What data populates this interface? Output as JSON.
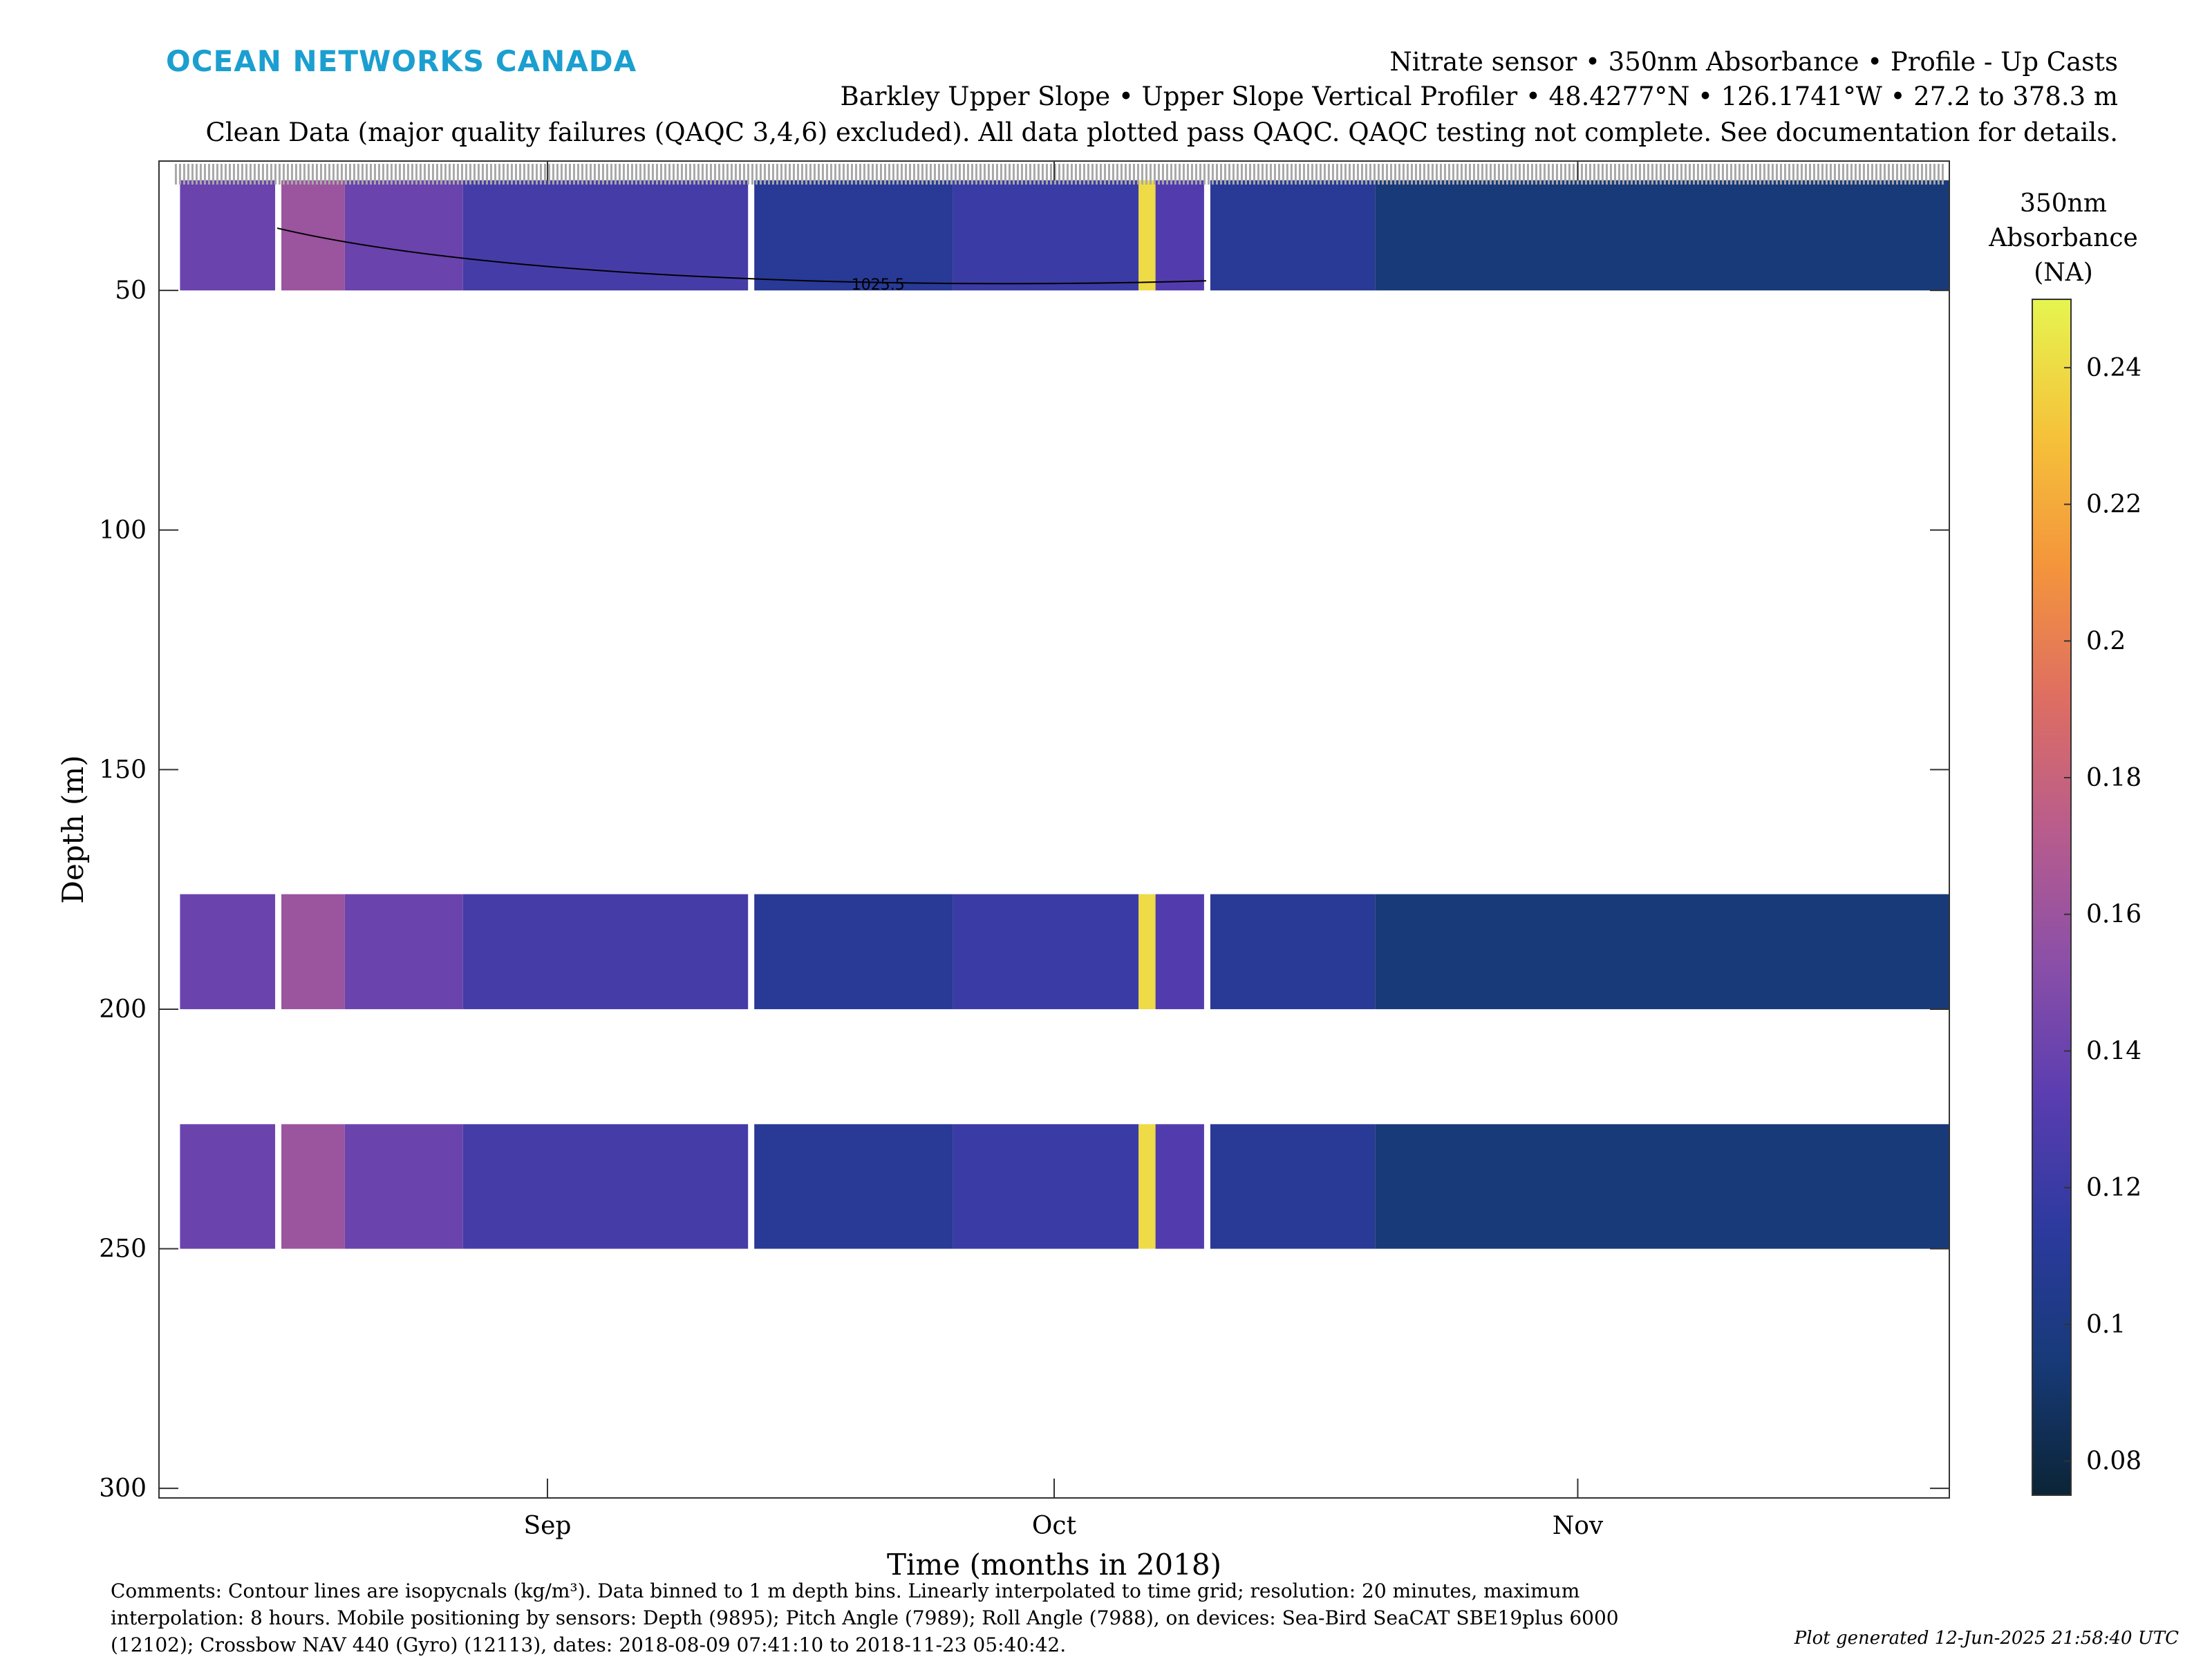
{
  "header": {
    "logo_text": "OCEAN NETWORKS CANADA",
    "line1": "Nitrate sensor • 350nm Absorbance • Profile - Up Casts",
    "line2": "Barkley Upper Slope • Upper Slope Vertical Profiler • 48.4277°N • 126.1741°W • 27.2 to 378.3 m",
    "line3": "Clean Data (major quality failures (QAQC 3,4,6) excluded). All data plotted pass QAQC. QAQC testing not complete. See documentation for details."
  },
  "colorbar": {
    "title_line1": "350nm",
    "title_line2": "Absorbance",
    "title_line3": "(NA)",
    "range": [
      0.075,
      0.25
    ],
    "ticks": [
      "0.08",
      "0.1",
      "0.12",
      "0.14",
      "0.16",
      "0.18",
      "0.2",
      "0.22",
      "0.24"
    ],
    "colors": [
      "#0b2436",
      "#173a78",
      "#2c3a9e",
      "#5a3db0",
      "#8a4fa8",
      "#b85c8d",
      "#de6e62",
      "#f4953c",
      "#f5c33a",
      "#e6f550"
    ]
  },
  "chart_data": {
    "type": "heatmap",
    "xlabel": "Time (months in 2018)",
    "ylabel": "Depth (m)",
    "x_range": [
      "2018-08-09",
      "2018-11-23"
    ],
    "ylim": [
      302,
      23
    ],
    "y_reversed": true,
    "x_ticks": [
      {
        "label": "Sep",
        "date": "2018-09-01"
      },
      {
        "label": "Oct",
        "date": "2018-10-01"
      },
      {
        "label": "Nov",
        "date": "2018-11-01"
      }
    ],
    "y_ticks": [
      "50",
      "100",
      "150",
      "200",
      "250",
      "300"
    ],
    "y_tick_values": [
      50,
      100,
      150,
      200,
      250,
      300
    ],
    "contour_label": "1025.5",
    "depth_bands": [
      {
        "name": "upper",
        "top": 27,
        "bottom": 50
      },
      {
        "name": "mid",
        "top": 176,
        "bottom": 200
      },
      {
        "name": "lower",
        "top": 224,
        "bottom": 250
      }
    ],
    "gaps": [
      [
        "2018-08-09",
        "2018-08-10"
      ],
      [
        "2018-08-16",
        "2018-08-16"
      ],
      [
        "2018-09-13",
        "2018-09-13"
      ],
      [
        "2018-10-10",
        "2018-10-10"
      ]
    ],
    "segments": [
      {
        "start": "2018-08-10",
        "end": "2018-08-16",
        "absorbance": 0.14
      },
      {
        "start": "2018-08-16",
        "end": "2018-08-20",
        "absorbance": 0.16
      },
      {
        "start": "2018-08-20",
        "end": "2018-08-27",
        "absorbance": 0.14
      },
      {
        "start": "2018-08-27",
        "end": "2018-09-13",
        "absorbance": 0.125
      },
      {
        "start": "2018-09-13",
        "end": "2018-09-25",
        "absorbance": 0.11
      },
      {
        "start": "2018-09-25",
        "end": "2018-10-06",
        "absorbance": 0.12
      },
      {
        "start": "2018-10-06",
        "end": "2018-10-07",
        "absorbance": 0.24
      },
      {
        "start": "2018-10-07",
        "end": "2018-10-10",
        "absorbance": 0.13
      },
      {
        "start": "2018-10-10",
        "end": "2018-10-20",
        "absorbance": 0.11
      },
      {
        "start": "2018-10-20",
        "end": "2018-11-23",
        "absorbance": 0.095
      }
    ]
  },
  "comments": "Comments: Contour lines are isopycnals (kg/m³). Data binned to 1 m depth bins. Linearly interpolated to time grid; resolution: 20 minutes, maximum interpolation: 8 hours. Mobile positioning by sensors: Depth (9895); Pitch Angle (7989); Roll Angle (7988), on devices: Sea-Bird SeaCAT SBE19plus 6000 (12102); Crossbow NAV 440 (Gyro) (12113), dates: 2018-08-09 07:41:10 to 2018-11-23 05:40:42.",
  "generated": "Plot generated 12-Jun-2025 21:58:40 UTC"
}
